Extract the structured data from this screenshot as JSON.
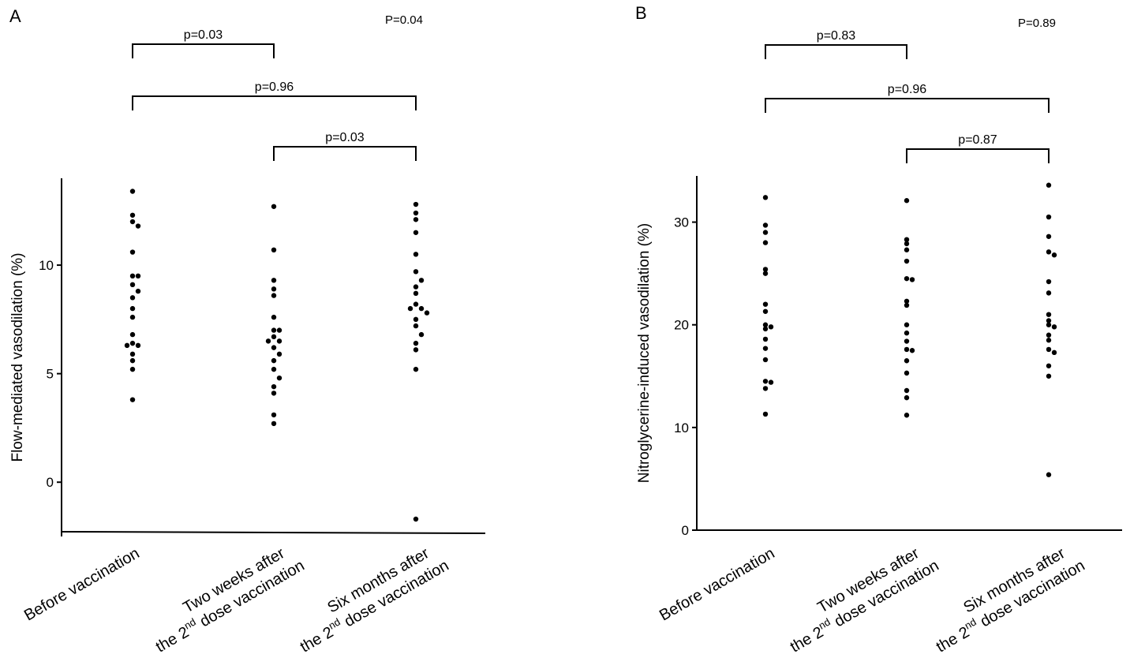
{
  "chart_data": [
    {
      "type": "scatter",
      "panel_label": "A",
      "ylabel": "Flow-mediated vasodilation (%)",
      "ylim": [
        -2.5,
        14
      ],
      "yticks": [
        0,
        5,
        10
      ],
      "categories": [
        {
          "line1": "Before vaccination",
          "line2": "",
          "sup": "",
          "line2_post": ""
        },
        {
          "line1": "Two  weeks after",
          "line2": "the 2",
          "sup": "nd",
          "line2_post": " dose vaccination"
        },
        {
          "line1": "Six months after",
          "line2": "the 2",
          "sup": "nd",
          "line2_post": " dose vaccination"
        }
      ],
      "overall_p": "P=0.04",
      "comparisons": [
        {
          "from": 0,
          "to": 1,
          "label": "p=0.03",
          "level": 0
        },
        {
          "from": 0,
          "to": 2,
          "label": "p=0.96",
          "level": 1
        },
        {
          "from": 1,
          "to": 2,
          "label": "p=0.03",
          "level": 2
        }
      ],
      "series": [
        {
          "values": [
            13.4,
            12.3,
            12.0,
            11.8,
            10.6,
            9.5,
            9.5,
            9.1,
            8.8,
            8.5,
            8.0,
            7.6,
            6.8,
            6.4,
            6.3,
            6.3,
            5.9,
            5.6,
            5.2,
            3.8
          ]
        },
        {
          "values": [
            12.7,
            10.7,
            9.3,
            8.9,
            8.6,
            7.6,
            7.0,
            7.0,
            6.7,
            6.5,
            6.5,
            6.2,
            5.9,
            5.6,
            5.2,
            4.8,
            4.4,
            4.1,
            3.1,
            2.7
          ]
        },
        {
          "values": [
            12.8,
            12.4,
            12.1,
            11.5,
            10.5,
            9.7,
            9.3,
            9.0,
            8.7,
            8.2,
            8.0,
            8.0,
            7.8,
            7.5,
            7.2,
            6.8,
            6.4,
            6.1,
            5.2,
            -1.7
          ]
        }
      ]
    },
    {
      "type": "scatter",
      "panel_label": "B",
      "ylabel": "Nitroglycerine-induced vasodilation (%)",
      "ylim": [
        0,
        34.5
      ],
      "yticks": [
        0,
        10,
        20,
        30
      ],
      "categories": [
        {
          "line1": "Before vaccination",
          "line2": "",
          "sup": "",
          "line2_post": ""
        },
        {
          "line1": "Two  weeks after",
          "line2": "the 2",
          "sup": "nd",
          "line2_post": " dose vaccination"
        },
        {
          "line1": "Six months after",
          "line2": "the 2",
          "sup": "nd",
          "line2_post": " dose vaccination"
        }
      ],
      "overall_p": "P=0.89",
      "comparisons": [
        {
          "from": 0,
          "to": 1,
          "label": "p=0.83",
          "level": 0
        },
        {
          "from": 0,
          "to": 2,
          "label": "p=0.96",
          "level": 1
        },
        {
          "from": 1,
          "to": 2,
          "label": "p=0.87",
          "level": 2
        }
      ],
      "series": [
        {
          "values": [
            32.4,
            29.7,
            29.0,
            28.0,
            25.4,
            25.0,
            22.0,
            21.3,
            20.0,
            19.6,
            19.8,
            18.6,
            17.7,
            16.6,
            14.5,
            14.4,
            13.8,
            11.3
          ]
        },
        {
          "values": [
            32.1,
            28.3,
            27.9,
            27.3,
            26.2,
            24.5,
            24.4,
            22.3,
            21.9,
            20.0,
            19.2,
            18.4,
            17.6,
            17.5,
            16.5,
            15.3,
            13.6,
            12.9,
            11.2
          ]
        },
        {
          "values": [
            33.6,
            30.5,
            28.6,
            27.1,
            26.8,
            24.2,
            23.1,
            21.0,
            20.4,
            20.0,
            19.8,
            19.0,
            18.5,
            17.6,
            17.3,
            16.0,
            15.0,
            5.4
          ]
        }
      ]
    }
  ]
}
